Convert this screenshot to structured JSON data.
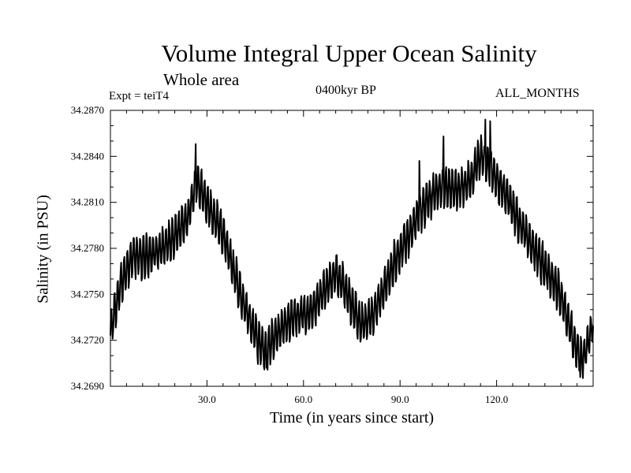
{
  "chart_data": {
    "type": "line",
    "title": "Volume Integral Upper Ocean Salinity",
    "subtitle": "Whole area",
    "experiment_label": "Expt = teiT4",
    "period_label": "0400kyr BP",
    "months_label": "ALL_MONTHS",
    "xlabel": "Time (in years since start)",
    "ylabel": "Salinity (in PSU)",
    "xlim": [
      0,
      150
    ],
    "ylim": [
      34.269,
      34.287
    ],
    "x_ticks": [
      30,
      60,
      90,
      120
    ],
    "x_tick_labels": [
      "30.0",
      "60.0",
      "90.0",
      "120.0"
    ],
    "y_ticks": [
      34.269,
      34.272,
      34.275,
      34.278,
      34.281,
      34.284,
      34.287
    ],
    "y_tick_labels": [
      "34.2690",
      "34.2720",
      "34.2750",
      "34.2780",
      "34.2810",
      "34.2840",
      "34.2870"
    ],
    "cycle_period_years": 1,
    "seasonal_amplitude": 0.0013,
    "trend": {
      "x": [
        0,
        3,
        7,
        12,
        18,
        24,
        27,
        30,
        35,
        40,
        45,
        48,
        52,
        57,
        62,
        66,
        70,
        74,
        78,
        82,
        88,
        93,
        98,
        103,
        108,
        112,
        115,
        118,
        122,
        128,
        134,
        140,
        144,
        147,
        150
      ],
      "y": [
        34.2725,
        34.2755,
        34.2775,
        34.2775,
        34.2783,
        34.28,
        34.2823,
        34.281,
        34.279,
        34.2753,
        34.2723,
        34.2713,
        34.2725,
        34.2735,
        34.2738,
        34.275,
        34.2765,
        34.2748,
        34.273,
        34.2738,
        34.277,
        34.279,
        34.281,
        34.282,
        34.2818,
        34.2825,
        34.284,
        34.2832,
        34.2818,
        34.2793,
        34.277,
        34.275,
        34.2718,
        34.2708,
        34.273
      ]
    },
    "spikes": [
      {
        "x": 26.5,
        "y": 34.2848
      },
      {
        "x": 48.5,
        "y": 34.2702
      },
      {
        "x": 96.0,
        "y": 34.2837
      },
      {
        "x": 103.5,
        "y": 34.2853
      },
      {
        "x": 116.5,
        "y": 34.2864
      },
      {
        "x": 118.0,
        "y": 34.2863
      },
      {
        "x": 146.0,
        "y": 34.2696
      }
    ]
  }
}
